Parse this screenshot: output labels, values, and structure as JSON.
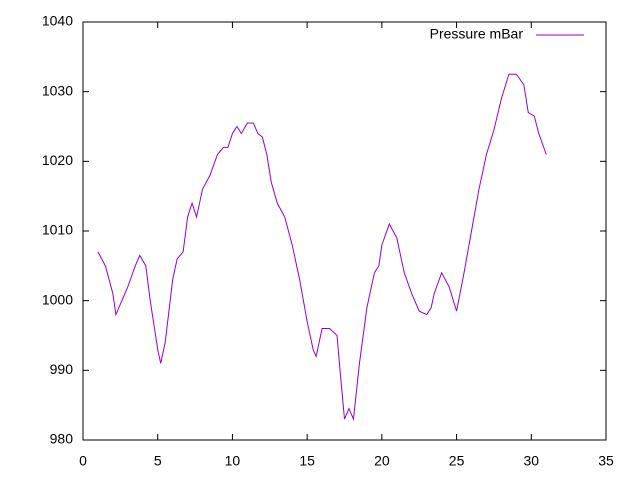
{
  "chart_data": {
    "type": "line",
    "x": [
      1,
      1.5,
      2,
      2.2,
      2.5,
      3,
      3.5,
      3.8,
      4.2,
      4.5,
      5,
      5.2,
      5.5,
      6,
      6.3,
      6.7,
      7,
      7.3,
      7.6,
      8,
      8.5,
      9,
      9.4,
      9.7,
      10,
      10.3,
      10.6,
      11,
      11.4,
      11.7,
      12,
      12.3,
      12.6,
      13,
      13.5,
      14,
      14.5,
      15,
      15.4,
      15.6,
      16,
      16.5,
      17,
      17.2,
      17.5,
      17.8,
      18.1,
      18.5,
      19,
      19.5,
      19.8,
      20,
      20.5,
      21,
      21.5,
      22,
      22.5,
      23,
      23.3,
      23.5,
      24,
      24.5,
      25,
      25.5,
      26,
      26.5,
      27,
      27.5,
      28,
      28.5,
      29,
      29.5,
      29.8,
      30.2,
      30.5,
      31
    ],
    "series": [
      {
        "name": "Pressure mBar",
        "color": "#9400d3",
        "values": [
          1007,
          1005,
          1001,
          998,
          999.5,
          1002,
          1005,
          1006.5,
          1005,
          1000,
          993,
          991,
          994,
          1003,
          1006,
          1007,
          1012,
          1014,
          1012,
          1016,
          1018,
          1021,
          1022,
          1022,
          1024,
          1025,
          1024,
          1025.5,
          1025.5,
          1024,
          1023.5,
          1021,
          1017,
          1014,
          1012,
          1008,
          1003,
          997,
          993,
          992,
          996,
          996,
          995,
          990,
          983,
          984.5,
          983,
          991,
          999,
          1004,
          1005,
          1008,
          1011,
          1009,
          1004,
          1001,
          998.5,
          998,
          999,
          1001,
          1004,
          1002,
          998.5,
          1004,
          1010,
          1016,
          1021,
          1024.5,
          1029,
          1032.5,
          1032.5,
          1031,
          1027,
          1026.5,
          1024,
          1021
        ]
      }
    ],
    "xlim": [
      0,
      35
    ],
    "xticks": [
      0,
      5,
      10,
      15,
      20,
      25,
      30,
      35
    ],
    "ylim": [
      980,
      1040
    ],
    "yticks": [
      980,
      990,
      1000,
      1010,
      1020,
      1030,
      1040
    ],
    "legend": "top-right"
  }
}
